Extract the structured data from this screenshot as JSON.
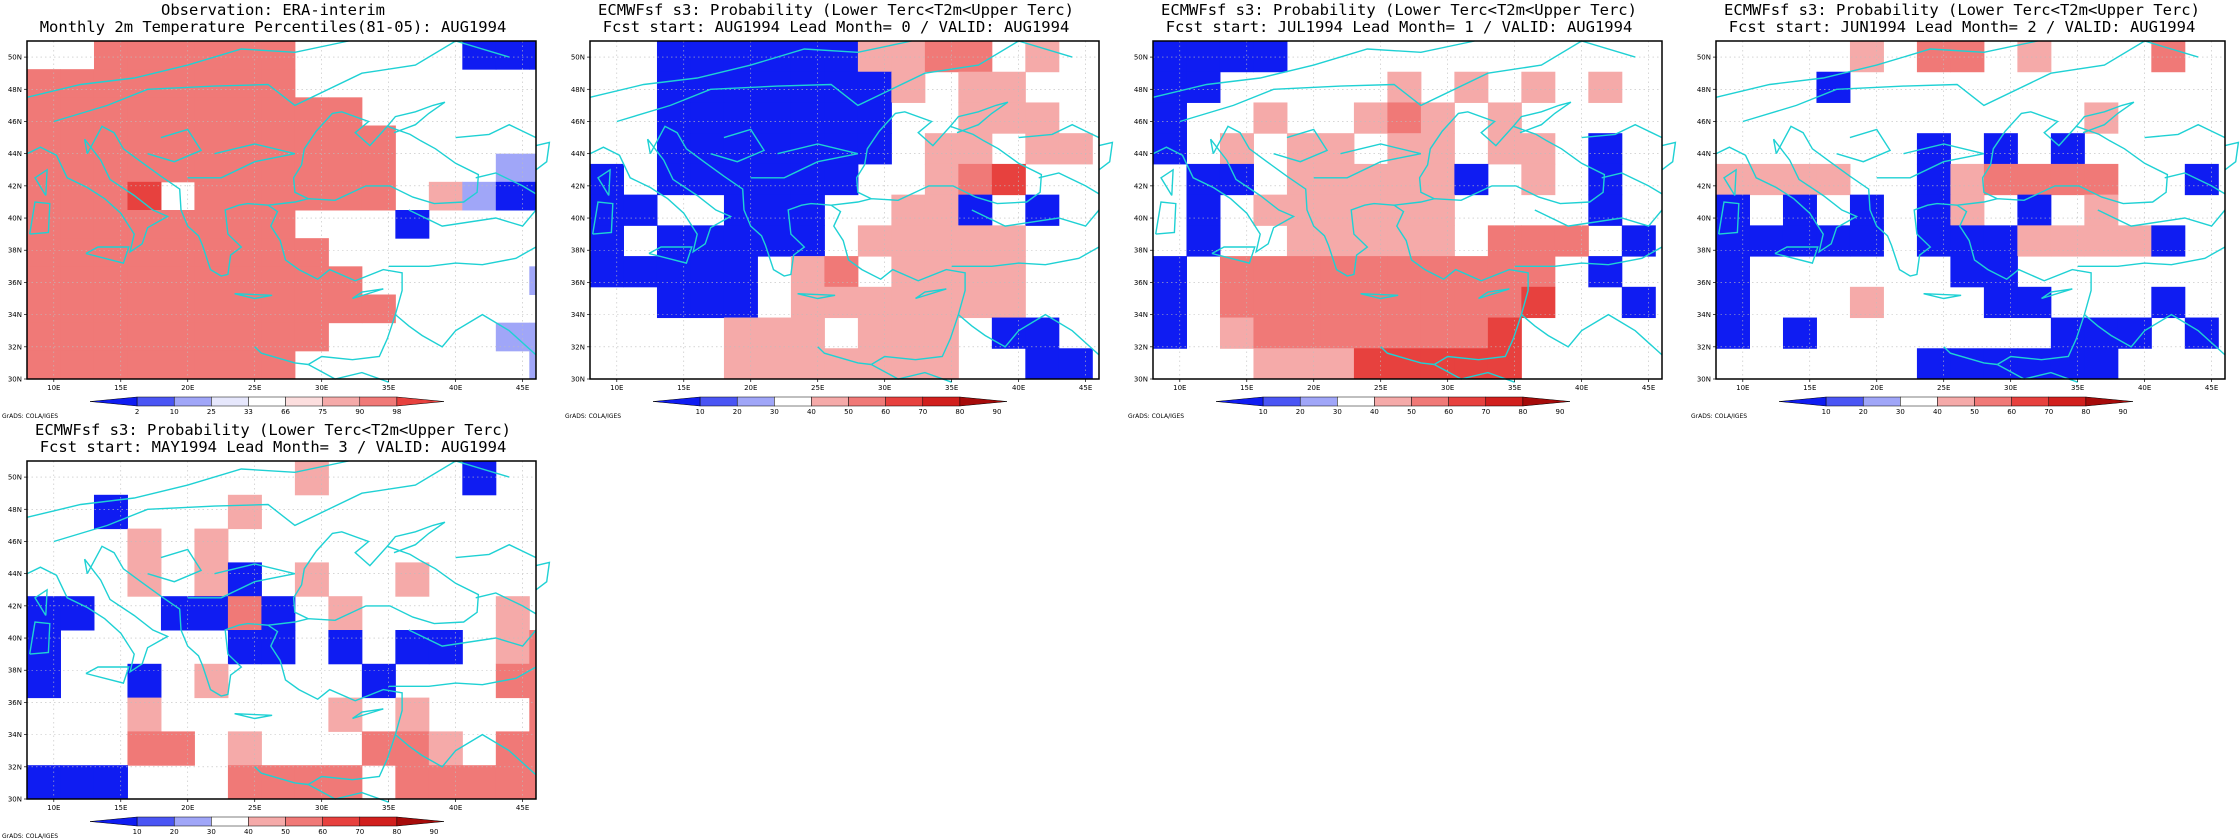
{
  "map_extent": {
    "lon_min": 8,
    "lon_max": 46,
    "lat_min": 30,
    "lat_max": 51
  },
  "grid_step_deg": 2.5,
  "lon_ticks": [
    "10E",
    "15E",
    "20E",
    "25E",
    "30E",
    "35E",
    "40E",
    "45E"
  ],
  "lat_ticks": [
    "30N",
    "32N",
    "34N",
    "36N",
    "38N",
    "40N",
    "42N",
    "44N",
    "46N",
    "48N",
    "50N"
  ],
  "credit": "GrADS: COLA/IGES",
  "palette": {
    "B3": "#0f1cf2",
    "B2": "#4a55f4",
    "B1": "#a0a6f8",
    "R1": "#f5aaa9",
    "R2": "#f07977",
    "R3": "#e7413e",
    "R4": "#d11f1d",
    "R5": "#a60b0a",
    "coast": "#1fd1d4",
    "frame": "#000000"
  },
  "panels": [
    {
      "title1": "Observation: ERA-interim",
      "title2": "Monthly 2m Temperature Percentiles(81-05): AUG1994",
      "colorbar": {
        "labels": [
          "2",
          "10",
          "25",
          "33",
          "66",
          "75",
          "90",
          "98"
        ],
        "colors": [
          "#0f1cf2",
          "#4a55f4",
          "#a0a6f8",
          "#e6e7fc",
          "#ffffff",
          "#fcdede",
          "#f5aaa9",
          "#f07977",
          "#e7413e"
        ]
      },
      "grid": [
        "..RRRRRR.....BBB",
        "RRRRRRRR.......",
        "RRRRRRRRRR......",
        "RRRRRRRRRRR.....",
        "RRRRRRRRRRR...bb",
        "RRRX.RRRRRR.rbBB",
        "RRRRRRRR...B.....",
        "RRRRRRRRR.......",
        "RRRRRRRRRR.....bb",
        "RRRRRRRRRRR.....b",
        "RRRRRRRRR.....bbb",
        "RRRRRRRR.......bb"
      ]
    },
    {
      "title1": "ECMWFsf s3: Probability (Lower Terc<T2m<Upper Terc)",
      "title2": "Fcst start: AUG1994  Lead Month= 0 / VALID: AUG1994",
      "colorbar": {
        "labels": [
          "10",
          "20",
          "30",
          "40",
          "50",
          "60",
          "70",
          "80",
          "90"
        ],
        "colors": [
          "#0f1cf2",
          "#4a55f4",
          "#a0a6f8",
          "#ffffff",
          "#f5aaa9",
          "#f07977",
          "#e7413e",
          "#d11f1d",
          "#a60b0a"
        ]
      },
      "grid": [
        "..BBBBBBrrRR.r",
        "..BBBBBBBr.rr",
        "..BBBBBBB..rrr",
        "..BBBBBBB.rr.rr",
        "B.BBBBBB..rRX...",
        "BB..BBB..rrB.B.",
        "B.BBBBB.rrrrr...",
        "BBBBB.rR.rrrr...",
        "..BBB.rrrrrrr...",
        "....rrr.rrr.BB.",
        "....rrrrrrr..BB"
      ]
    },
    {
      "title1": "ECMWFsf s3: Probability (Lower Terc<T2m<Upper Terc)",
      "title2": "Fcst start: JUL1994  Lead Month= 1 / VALID: AUG1994",
      "colorbar": {
        "labels": [
          "10",
          "20",
          "30",
          "40",
          "50",
          "60",
          "70",
          "80",
          "90"
        ],
        "colors": [
          "#0f1cf2",
          "#4a55f4",
          "#a0a6f8",
          "#ffffff",
          "#f5aaa9",
          "#f07977",
          "#e7413e",
          "#d11f1d",
          "#a60b0a"
        ]
      },
      "grid": [
        "BBBB...........",
        "BB.....r.r.r.r",
        "B..r..rRr.r....",
        "B.r.rr.rr.rr.B.",
        ".BB.rrrrrB.r.B.",
        ".B.rrrrrr....B.",
        ".B..rrrrr.RRR.B",
        "B.RRRRRRRRRR.B.",
        "B.RRRRRRRRRX..B",
        "B.rRRRRRRRX....",
        "...rrrXXXXX...."
      ]
    },
    {
      "title1": "ECMWFsf s3: Probability (Lower Terc<T2m<Upper Terc)",
      "title2": "Fcst start: JUN1994  Lead Month= 2 / VALID: AUG1994",
      "colorbar": {
        "labels": [
          "10",
          "20",
          "30",
          "40",
          "50",
          "60",
          "70",
          "80",
          "90"
        ],
        "colors": [
          "#0f1cf2",
          "#4a55f4",
          "#a0a6f8",
          "#ffffff",
          "#f5aaa9",
          "#f07977",
          "#e7413e",
          "#d11f1d",
          "#a60b0a"
        ]
      },
      "grid": [
        "....r.RR.r...R",
        "...B...........",
        "...........r..",
        "......B.B.B....",
        "rrrr..BrRRRR..B",
        "B.B.B.Br.B.r...",
        "BBBBB.BBBrrrrB",
        "B......BB.....",
        "B...r...BB...B",
        "B.B.......BBB.B.",
        "......BBBBBB...."
      ]
    },
    {
      "title1": "ECMWFsf s3: Probability (Lower Terc<T2m<Upper Terc)",
      "title2": "Fcst start: MAY1994  Lead Month= 3 / VALID: AUG1994",
      "colorbar": {
        "labels": [
          "10",
          "20",
          "30",
          "40",
          "50",
          "60",
          "70",
          "80",
          "90"
        ],
        "colors": [
          "#0f1cf2",
          "#4a55f4",
          "#a0a6f8",
          "#ffffff",
          "#f5aaa9",
          "#f07977",
          "#e7413e",
          "#d11f1d",
          "#a60b0a"
        ]
      },
      "grid": [
        "........r....B.",
        "..B...r........",
        "...r.r.........",
        "...r.rB.r..r....",
        "BB..BBRB.r....r",
        "B.....BB.B.BB.rRR",
        "B..B.r....B...RRR",
        "...r.....r.r...RR",
        "...RR.r...RRr.RRR",
        "BBB...RRRR.RRRRR"
      ]
    }
  ]
}
